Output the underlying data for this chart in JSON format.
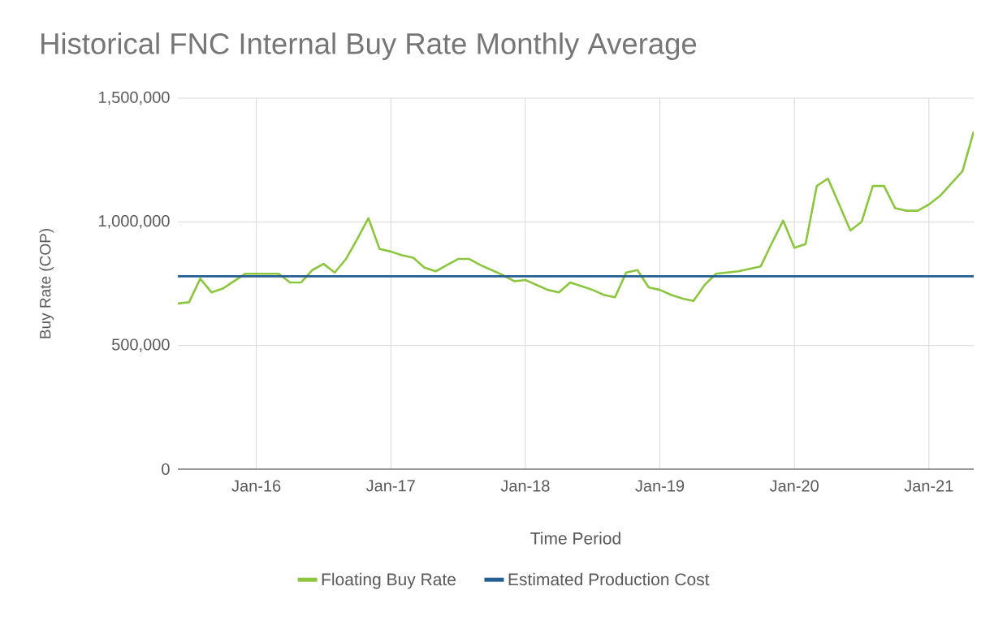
{
  "chart_data": {
    "type": "line",
    "title": "Historical FNC Internal Buy Rate Monthly Average",
    "xlabel": "Time Period",
    "ylabel": "Buy Rate (COP)",
    "x": [
      "2015-06",
      "2015-07",
      "2015-08",
      "2015-09",
      "2015-10",
      "2015-11",
      "2015-12",
      "2016-01",
      "2016-02",
      "2016-03",
      "2016-04",
      "2016-05",
      "2016-06",
      "2016-07",
      "2016-08",
      "2016-09",
      "2016-10",
      "2016-11",
      "2016-12",
      "2017-01",
      "2017-02",
      "2017-03",
      "2017-04",
      "2017-05",
      "2017-06",
      "2017-07",
      "2017-08",
      "2017-09",
      "2017-10",
      "2017-11",
      "2017-12",
      "2018-01",
      "2018-02",
      "2018-03",
      "2018-04",
      "2018-05",
      "2018-06",
      "2018-07",
      "2018-08",
      "2018-09",
      "2018-10",
      "2018-11",
      "2018-12",
      "2019-01",
      "2019-02",
      "2019-03",
      "2019-04",
      "2019-05",
      "2019-06",
      "2019-07",
      "2019-08",
      "2019-09",
      "2019-10",
      "2019-11",
      "2019-12",
      "2020-01",
      "2020-02",
      "2020-03",
      "2020-04",
      "2020-05",
      "2020-06",
      "2020-07",
      "2020-08",
      "2020-09",
      "2020-10",
      "2020-11",
      "2020-12",
      "2021-01",
      "2021-02",
      "2021-03",
      "2021-04",
      "2021-05"
    ],
    "series": [
      {
        "name": "Floating Buy Rate",
        "color": "#8cc63f",
        "values": [
          670000,
          675000,
          770000,
          715000,
          730000,
          760000,
          790000,
          790000,
          790000,
          790000,
          755000,
          755000,
          805000,
          830000,
          795000,
          850000,
          930000,
          1015000,
          890000,
          880000,
          865000,
          855000,
          815000,
          800000,
          825000,
          850000,
          850000,
          825000,
          805000,
          785000,
          760000,
          765000,
          745000,
          725000,
          715000,
          755000,
          740000,
          725000,
          705000,
          695000,
          795000,
          805000,
          735000,
          725000,
          705000,
          690000,
          680000,
          745000,
          790000,
          795000,
          800000,
          810000,
          820000,
          915000,
          1005000,
          895000,
          910000,
          1145000,
          1175000,
          1070000,
          965000,
          1000000,
          1145000,
          1145000,
          1055000,
          1045000,
          1045000,
          1070000,
          1105000,
          1155000,
          1205000,
          1365000
        ]
      },
      {
        "name": "Estimated Production Cost",
        "color": "#255e91",
        "x": [
          "2015-06",
          "2021-05"
        ],
        "values": [
          780000,
          780000
        ]
      }
    ],
    "xlim": [
      "2015-06",
      "2021-05"
    ],
    "xticks": [
      {
        "value": "2016-01",
        "label": "Jan-16"
      },
      {
        "value": "2017-01",
        "label": "Jan-17"
      },
      {
        "value": "2018-01",
        "label": "Jan-18"
      },
      {
        "value": "2019-01",
        "label": "Jan-19"
      },
      {
        "value": "2020-01",
        "label": "Jan-20"
      },
      {
        "value": "2021-01",
        "label": "Jan-21"
      }
    ],
    "ylim": [
      0,
      1500000
    ],
    "yticks": [
      0,
      {
        "value": 500000,
        "label": "500,000"
      },
      {
        "value": 1000000,
        "label": "1,000,000"
      },
      {
        "value": 1500000,
        "label": "1,500,000"
      }
    ],
    "grid": true,
    "legend": "bottom"
  }
}
